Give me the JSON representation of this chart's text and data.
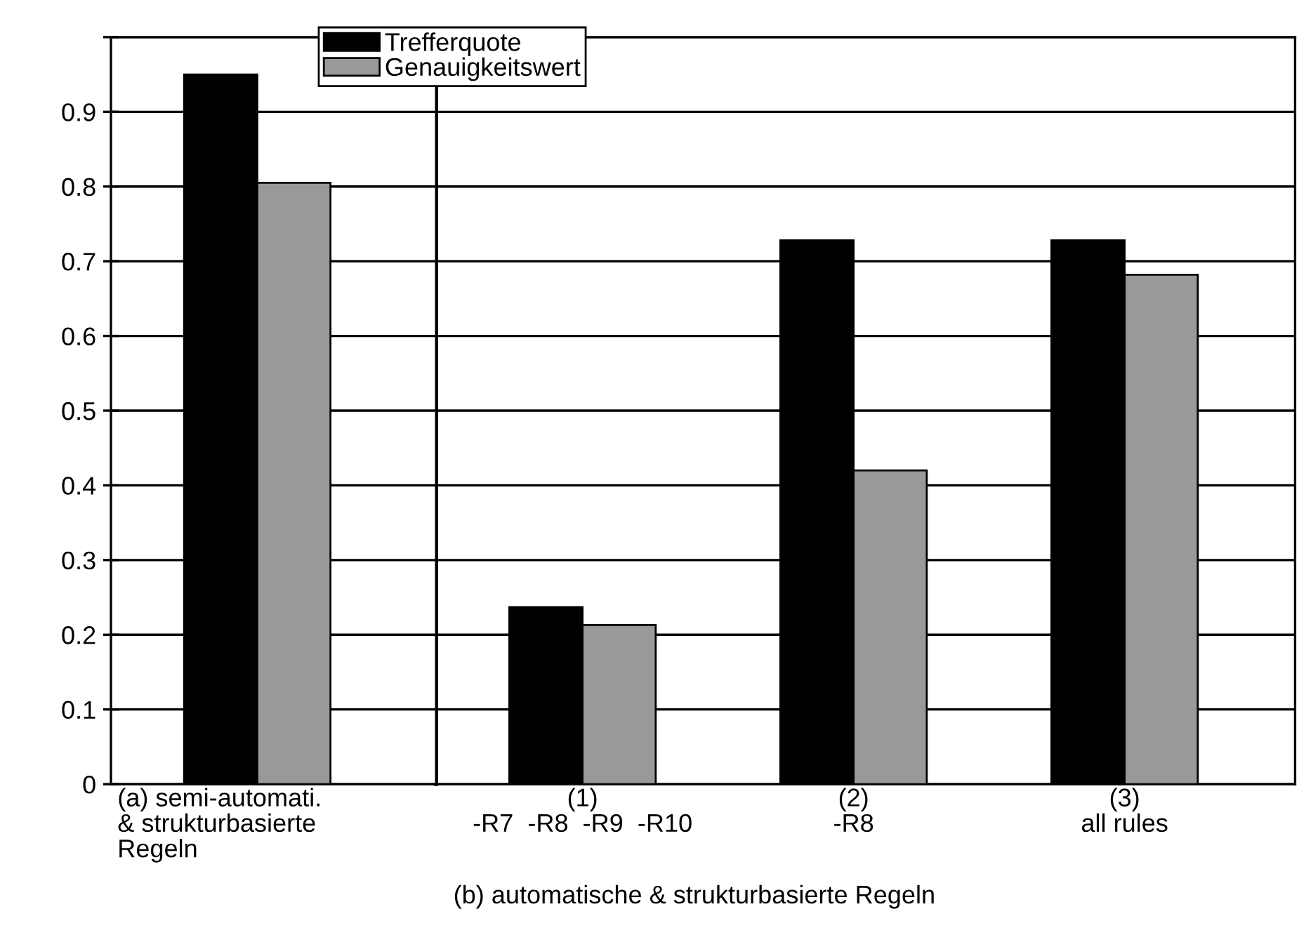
{
  "chart_data": [
    {
      "type": "bar",
      "categories": [
        "(a) semi-automati.\n& strukturbasierte\nRegeln"
      ],
      "series": [
        {
          "name": "Trefferquote",
          "color": "#000000",
          "values": [
            0.95
          ]
        },
        {
          "name": "Genauigkeitswert",
          "color": "#999999",
          "values": [
            0.805
          ]
        }
      ],
      "ylim": [
        0,
        1.0
      ],
      "yticks": [
        0,
        0.1,
        0.2,
        0.3,
        0.4,
        0.5,
        0.6,
        0.7,
        0.8,
        0.9,
        {
          "value": 1.0,
          "label": null
        }
      ],
      "grid": "y",
      "legend": "top right"
    },
    {
      "type": "bar",
      "categories": [
        "(1)\n-R7  -R8  -R9  -R10",
        "(2)\n-R8",
        "(3)\nall rules"
      ],
      "series": [
        {
          "color": "#000000",
          "values": [
            0.237,
            0.728,
            0.728
          ]
        },
        {
          "color": "#999999",
          "values": [
            0.213,
            0.42,
            0.682
          ]
        }
      ],
      "ylim": [
        0,
        1.0
      ],
      "yticks": [
        0,
        0.1,
        0.2,
        0.3,
        0.4,
        0.5,
        0.6,
        0.7,
        0.8,
        0.9,
        {
          "value": 1.0,
          "label": null
        }
      ],
      "grid": "y",
      "tick_labels": "x",
      "annotations": [
        "(b) automatische & strukturbasierte Regeln"
      ]
    }
  ]
}
